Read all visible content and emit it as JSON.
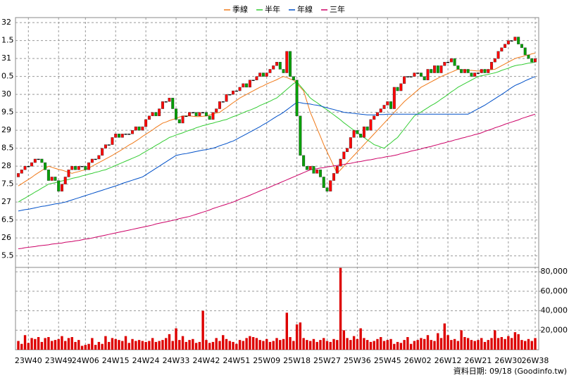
{
  "chart_data": {
    "type": "candlestick",
    "legend": "top",
    "footnote": "資料日期: 09/18 (Goodinfo.tw)",
    "up_color": "#ff0000",
    "down_color": "#00a000",
    "volume_color": "#dd0000",
    "grid": true,
    "categories": [
      null,
      null,
      null,
      "23W40",
      null,
      null,
      null,
      null,
      null,
      null,
      null,
      null,
      "23W49",
      null,
      null,
      null,
      null,
      null,
      null,
      null,
      "24W06",
      null,
      null,
      null,
      null,
      null,
      null,
      null,
      null,
      "24W15",
      null,
      null,
      null,
      null,
      null,
      null,
      null,
      null,
      "24W24",
      null,
      null,
      null,
      null,
      null,
      null,
      null,
      null,
      "24W33",
      null,
      null,
      null,
      null,
      null,
      null,
      null,
      null,
      "24W42",
      null,
      null,
      null,
      null,
      null,
      null,
      null,
      null,
      "24W51",
      null,
      null,
      null,
      null,
      null,
      null,
      null,
      null,
      "25W09",
      null,
      null,
      null,
      null,
      null,
      null,
      null,
      null,
      "25W18",
      null,
      null,
      null,
      null,
      null,
      null,
      null,
      null,
      "25W27",
      null,
      null,
      null,
      null,
      null,
      null,
      null,
      null,
      "25W36",
      null,
      null,
      null,
      null,
      null,
      null,
      null,
      null,
      "25W45",
      null,
      null,
      null,
      null,
      null,
      null,
      null,
      null,
      "26W02",
      null,
      null,
      null,
      null,
      null,
      null,
      null,
      null,
      "26W12",
      null,
      null,
      null,
      null,
      null,
      null,
      null,
      null,
      "26W21",
      null,
      null,
      null,
      null,
      null,
      null,
      null,
      null,
      "26W30",
      null,
      null,
      null,
      null,
      null,
      null,
      null,
      "26W38"
    ],
    "open": [
      27.7,
      27.8,
      27.9,
      28.0,
      28.0,
      28.1,
      28.2,
      28.2,
      28.1,
      27.9,
      27.6,
      27.7,
      27.6,
      27.3,
      27.5,
      27.7,
      27.9,
      28.0,
      27.9,
      28.0,
      28.0,
      27.9,
      28.1,
      28.2,
      28.2,
      28.3,
      28.5,
      28.6,
      28.6,
      28.8,
      28.9,
      28.8,
      28.9,
      28.9,
      28.9,
      29.0,
      29.1,
      29.0,
      29.1,
      29.3,
      29.4,
      29.5,
      29.4,
      29.6,
      29.8,
      29.8,
      29.9,
      29.6,
      29.3,
      29.2,
      29.4,
      29.4,
      29.5,
      29.5,
      29.4,
      29.5,
      29.5,
      29.4,
      29.3,
      29.5,
      29.6,
      29.8,
      29.8,
      30.0,
      30.0,
      30.1,
      30.1,
      30.2,
      30.3,
      30.2,
      30.4,
      30.4,
      30.5,
      30.6,
      30.5,
      30.6,
      30.7,
      30.8,
      30.9,
      30.7,
      30.6,
      31.2,
      30.5,
      30.4,
      29.4,
      28.3,
      28.0,
      27.9,
      28.0,
      27.8,
      27.9,
      27.7,
      27.4,
      27.3,
      27.6,
      27.8,
      28.0,
      28.2,
      28.4,
      28.5,
      28.8,
      29.0,
      28.9,
      28.8,
      29.1,
      29.0,
      29.3,
      29.4,
      29.5,
      29.6,
      29.7,
      29.8,
      29.6,
      30.2,
      30.1,
      30.3,
      30.5,
      30.5,
      30.5,
      30.6,
      30.6,
      30.5,
      30.4,
      30.7,
      30.6,
      30.8,
      30.6,
      30.8,
      30.9,
      30.9,
      31.0,
      30.8,
      30.7,
      30.6,
      30.7,
      30.6,
      30.5,
      30.6,
      30.6,
      30.7,
      30.6,
      30.7,
      30.9,
      31.0,
      31.2,
      31.3,
      31.4,
      31.5,
      31.5,
      31.6,
      31.4,
      31.3,
      31.1,
      31.0,
      30.9
    ],
    "close": [
      27.8,
      27.9,
      28.0,
      28.0,
      28.1,
      28.2,
      28.2,
      28.1,
      27.9,
      27.6,
      27.7,
      27.6,
      27.3,
      27.5,
      27.7,
      27.9,
      28.0,
      27.9,
      28.0,
      28.0,
      27.9,
      28.1,
      28.2,
      28.2,
      28.3,
      28.5,
      28.6,
      28.6,
      28.8,
      28.9,
      28.8,
      28.9,
      28.9,
      28.9,
      29.0,
      29.1,
      29.0,
      29.1,
      29.3,
      29.4,
      29.5,
      29.4,
      29.6,
      29.8,
      29.8,
      29.9,
      29.6,
      29.3,
      29.2,
      29.4,
      29.4,
      29.5,
      29.5,
      29.4,
      29.5,
      29.5,
      29.4,
      29.3,
      29.5,
      29.6,
      29.8,
      29.8,
      30.0,
      30.0,
      30.1,
      30.1,
      30.2,
      30.3,
      30.2,
      30.4,
      30.4,
      30.5,
      30.6,
      30.5,
      30.6,
      30.7,
      30.8,
      30.9,
      30.7,
      30.6,
      31.2,
      30.5,
      30.4,
      29.4,
      28.3,
      28.0,
      27.9,
      28.0,
      27.8,
      27.9,
      27.7,
      27.4,
      27.3,
      27.6,
      27.8,
      28.0,
      28.2,
      28.4,
      28.5,
      28.8,
      29.0,
      28.9,
      28.8,
      29.1,
      29.0,
      29.3,
      29.4,
      29.5,
      29.6,
      29.7,
      29.8,
      29.6,
      30.2,
      30.1,
      30.3,
      30.5,
      30.5,
      30.5,
      30.6,
      30.6,
      30.5,
      30.4,
      30.7,
      30.6,
      30.8,
      30.6,
      30.8,
      30.9,
      30.9,
      31.0,
      30.8,
      30.7,
      30.6,
      30.7,
      30.6,
      30.5,
      30.6,
      30.6,
      30.7,
      30.6,
      30.7,
      30.9,
      31.0,
      31.2,
      31.3,
      31.4,
      31.5,
      31.5,
      31.6,
      31.4,
      31.3,
      31.1,
      31.0,
      30.9,
      31.0
    ],
    "volume": [
      9000,
      6000,
      15000,
      7000,
      12000,
      11000,
      13000,
      8000,
      12000,
      13000,
      9000,
      10000,
      11000,
      14000,
      9000,
      12000,
      13000,
      8000,
      10000,
      4000,
      5000,
      6000,
      12000,
      5000,
      8000,
      6000,
      14000,
      8000,
      12000,
      11000,
      10000,
      9000,
      14000,
      7000,
      11000,
      9000,
      10000,
      9000,
      8000,
      9000,
      12000,
      8000,
      9000,
      10000,
      12000,
      16000,
      9000,
      22000,
      10000,
      14000,
      8000,
      10000,
      11000,
      7000,
      8000,
      40000,
      10000,
      7000,
      8000,
      12000,
      9000,
      15000,
      11000,
      9000,
      8000,
      6000,
      10000,
      9000,
      12000,
      14000,
      13000,
      12000,
      10000,
      9000,
      11000,
      8000,
      9000,
      12000,
      10000,
      11000,
      38000,
      13000,
      9000,
      26000,
      28000,
      12000,
      10000,
      9000,
      11000,
      8000,
      10000,
      12000,
      9000,
      8000,
      11000,
      10000,
      84000,
      20000,
      12000,
      10000,
      14000,
      11000,
      22000,
      12000,
      10000,
      8000,
      9000,
      11000,
      13000,
      9000,
      10000,
      11000,
      6000,
      8000,
      7000,
      10000,
      13000,
      6000,
      9000,
      10000,
      12000,
      11000,
      15000,
      10000,
      9000,
      17000,
      12000,
      27000,
      15000,
      10000,
      11000,
      9000,
      20000,
      13000,
      12000,
      10000,
      9000,
      10000,
      12000,
      8000,
      10000,
      12000,
      20000,
      12000,
      13000,
      11000,
      14000,
      12000,
      18000,
      16000,
      10000,
      9000,
      11000,
      9000,
      12000
    ],
    "series": [
      {
        "name": "季線",
        "color": "#f07a1a",
        "values": [
          27.45,
          27.51,
          27.57,
          27.63,
          27.69,
          27.76,
          27.82,
          27.88,
          27.94,
          28.0,
          27.97,
          27.94,
          27.91,
          27.89,
          27.86,
          27.83,
          27.8,
          27.83,
          27.85,
          27.88,
          27.9,
          27.95,
          28.0,
          28.05,
          28.1,
          28.15,
          28.2,
          28.25,
          28.3,
          28.36,
          28.41,
          28.47,
          28.53,
          28.59,
          28.64,
          28.7,
          28.76,
          28.83,
          28.89,
          28.95,
          29.01,
          29.08,
          29.14,
          29.2,
          29.23,
          29.27,
          29.3,
          29.33,
          29.37,
          29.4,
          29.4,
          29.4,
          29.39,
          29.38,
          29.38,
          29.39,
          29.4,
          29.43,
          29.45,
          29.48,
          29.5,
          29.57,
          29.63,
          29.7,
          29.77,
          29.83,
          29.9,
          29.95,
          30.0,
          30.05,
          30.1,
          30.15,
          30.2,
          30.24,
          30.29,
          30.33,
          30.37,
          30.41,
          30.46,
          30.5,
          30.47,
          30.43,
          30.4,
          30.3,
          30.2,
          30.1,
          29.8,
          29.5,
          29.28,
          29.05,
          28.83,
          28.6,
          28.4,
          28.2,
          28.0,
          27.8,
          27.9,
          28.0,
          28.1,
          28.2,
          28.3,
          28.4,
          28.5,
          28.6,
          28.7,
          28.8,
          28.9,
          29.0,
          29.1,
          29.2,
          29.3,
          29.4,
          29.5,
          29.6,
          29.7,
          29.8,
          29.88,
          29.96,
          30.04,
          30.12,
          30.2,
          30.25,
          30.3,
          30.35,
          30.4,
          30.45,
          30.5,
          30.54,
          30.58,
          30.62,
          30.66,
          30.7,
          30.69,
          30.68,
          30.67,
          30.67,
          30.66,
          30.65,
          30.66,
          30.67,
          30.68,
          30.69,
          30.7,
          30.75,
          30.8,
          30.85,
          30.9,
          30.95,
          31.0,
          31.03,
          31.05,
          31.08,
          31.1,
          31.13,
          31.15
        ]
      },
      {
        "name": "半年",
        "color": "#33cc33",
        "values": [
          27.0,
          27.06,
          27.11,
          27.17,
          27.22,
          27.28,
          27.33,
          27.39,
          27.44,
          27.5,
          27.52,
          27.54,
          27.57,
          27.59,
          27.61,
          27.63,
          27.66,
          27.68,
          27.7,
          27.73,
          27.75,
          27.78,
          27.8,
          27.83,
          27.85,
          27.88,
          27.9,
          27.94,
          27.98,
          28.02,
          28.06,
          28.1,
          28.14,
          28.18,
          28.22,
          28.26,
          28.3,
          28.36,
          28.41,
          28.47,
          28.52,
          28.58,
          28.63,
          28.69,
          28.74,
          28.8,
          28.83,
          28.87,
          28.9,
          28.93,
          28.97,
          29.0,
          29.03,
          29.07,
          29.1,
          29.13,
          29.15,
          29.18,
          29.2,
          29.23,
          29.25,
          29.28,
          29.3,
          29.34,
          29.38,
          29.41,
          29.45,
          29.49,
          29.53,
          29.56,
          29.6,
          29.64,
          29.69,
          29.73,
          29.77,
          29.81,
          29.86,
          29.9,
          29.98,
          30.06,
          30.14,
          30.22,
          30.3,
          30.35,
          30.24,
          30.13,
          30.01,
          29.9,
          29.83,
          29.77,
          29.7,
          29.63,
          29.57,
          29.5,
          29.43,
          29.36,
          29.29,
          29.21,
          29.14,
          29.07,
          29.0,
          28.93,
          28.87,
          28.8,
          28.73,
          28.67,
          28.6,
          28.57,
          28.53,
          28.5,
          28.58,
          28.65,
          28.73,
          28.8,
          28.92,
          29.04,
          29.16,
          29.28,
          29.4,
          29.46,
          29.51,
          29.57,
          29.63,
          29.69,
          29.74,
          29.8,
          29.87,
          29.93,
          30.0,
          30.07,
          30.13,
          30.2,
          30.25,
          30.3,
          30.35,
          30.4,
          30.45,
          30.5,
          30.52,
          30.54,
          30.56,
          30.58,
          30.6,
          30.63,
          30.67,
          30.7,
          30.73,
          30.77,
          30.8,
          30.82,
          30.83,
          30.85,
          30.87,
          30.88,
          30.9
        ]
      },
      {
        "name": "年線",
        "color": "#0050c8",
        "values": [
          26.75,
          26.77,
          26.79,
          26.8,
          26.82,
          26.84,
          26.86,
          26.88,
          26.89,
          26.91,
          26.93,
          26.95,
          26.96,
          26.98,
          27.0,
          27.03,
          27.06,
          27.09,
          27.12,
          27.15,
          27.18,
          27.21,
          27.24,
          27.27,
          27.3,
          27.33,
          27.36,
          27.39,
          27.42,
          27.45,
          27.48,
          27.52,
          27.55,
          27.58,
          27.61,
          27.64,
          27.67,
          27.7,
          27.76,
          27.82,
          27.88,
          27.94,
          28.0,
          28.06,
          28.12,
          28.18,
          28.24,
          28.3,
          28.32,
          28.34,
          28.35,
          28.37,
          28.39,
          28.41,
          28.43,
          28.45,
          28.46,
          28.48,
          28.5,
          28.53,
          28.57,
          28.6,
          28.63,
          28.67,
          28.7,
          28.75,
          28.8,
          28.85,
          28.9,
          28.95,
          29.0,
          29.05,
          29.1,
          29.16,
          29.21,
          29.27,
          29.33,
          29.39,
          29.44,
          29.5,
          29.57,
          29.64,
          29.71,
          29.78,
          29.77,
          29.75,
          29.74,
          29.73,
          29.71,
          29.7,
          29.68,
          29.65,
          29.63,
          29.6,
          29.58,
          29.55,
          29.53,
          29.5,
          29.49,
          29.48,
          29.47,
          29.46,
          29.45,
          29.44,
          29.43,
          29.43,
          29.43,
          29.44,
          29.44,
          29.44,
          29.45,
          29.45,
          29.45,
          29.45,
          29.45,
          29.45,
          29.45,
          29.45,
          29.45,
          29.45,
          29.45,
          29.45,
          29.45,
          29.45,
          29.45,
          29.45,
          29.45,
          29.45,
          29.45,
          29.45,
          29.45,
          29.45,
          29.45,
          29.45,
          29.45,
          29.5,
          29.55,
          29.6,
          29.65,
          29.7,
          29.76,
          29.82,
          29.88,
          29.94,
          30.0,
          30.06,
          30.13,
          30.19,
          30.25,
          30.29,
          30.33,
          30.38,
          30.42,
          30.46,
          30.5
        ]
      },
      {
        "name": "三年",
        "color": "#cc0066",
        "values": [
          25.7,
          25.71,
          25.73,
          25.74,
          25.75,
          25.76,
          25.78,
          25.79,
          25.8,
          25.81,
          25.83,
          25.84,
          25.85,
          25.86,
          25.88,
          25.89,
          25.9,
          25.92,
          25.93,
          25.95,
          25.97,
          25.98,
          26.0,
          26.02,
          26.04,
          26.06,
          26.08,
          26.1,
          26.12,
          26.14,
          26.16,
          26.18,
          26.2,
          26.22,
          26.24,
          26.26,
          26.28,
          26.3,
          26.32,
          26.34,
          26.36,
          26.39,
          26.41,
          26.43,
          26.45,
          26.47,
          26.49,
          26.51,
          26.54,
          26.56,
          26.58,
          26.6,
          26.63,
          26.66,
          26.69,
          26.72,
          26.75,
          26.78,
          26.82,
          26.85,
          26.88,
          26.91,
          26.94,
          26.97,
          27.0,
          27.04,
          27.08,
          27.12,
          27.15,
          27.19,
          27.23,
          27.27,
          27.31,
          27.35,
          27.38,
          27.42,
          27.46,
          27.5,
          27.54,
          27.58,
          27.62,
          27.66,
          27.7,
          27.74,
          27.78,
          27.82,
          27.86,
          27.9,
          27.92,
          27.93,
          27.95,
          27.96,
          27.98,
          27.99,
          28.01,
          28.02,
          28.04,
          28.05,
          28.07,
          28.08,
          28.1,
          28.12,
          28.13,
          28.15,
          28.17,
          28.18,
          28.2,
          28.22,
          28.23,
          28.25,
          28.27,
          28.28,
          28.3,
          28.32,
          28.35,
          28.37,
          28.39,
          28.42,
          28.44,
          28.46,
          28.48,
          28.51,
          28.53,
          28.55,
          28.58,
          28.6,
          28.63,
          28.65,
          28.68,
          28.7,
          28.73,
          28.75,
          28.78,
          28.8,
          28.83,
          28.85,
          28.88,
          28.9,
          28.93,
          28.97,
          29.0,
          29.03,
          29.07,
          29.1,
          29.13,
          29.17,
          29.2,
          29.23,
          29.26,
          29.29,
          29.33,
          29.36,
          29.39,
          29.42,
          29.45
        ]
      }
    ],
    "ylim": [
      25.18,
      32.14
    ],
    "yticks": [
      32,
      {
        "value": 31.5,
        "label": "1.5"
      },
      31,
      {
        "value": 30.5,
        "label": "0.5"
      },
      30,
      {
        "value": 29.5,
        "label": "9.5"
      },
      29,
      {
        "value": 28.5,
        "label": "8.5"
      },
      28,
      {
        "value": 27.5,
        "label": "7.5"
      },
      27,
      {
        "value": 26.5,
        "label": "6.5"
      },
      26,
      {
        "value": 25.5,
        "label": "5.5"
      }
    ],
    "y2lim": [
      0,
      84500
    ],
    "y2ticks": [
      {
        "value": 20000,
        "label": "20,000"
      },
      {
        "value": 40000,
        "label": "40,000"
      },
      {
        "value": 60000,
        "label": "60,000"
      },
      {
        "value": 80000,
        "label": "80,000"
      }
    ]
  }
}
